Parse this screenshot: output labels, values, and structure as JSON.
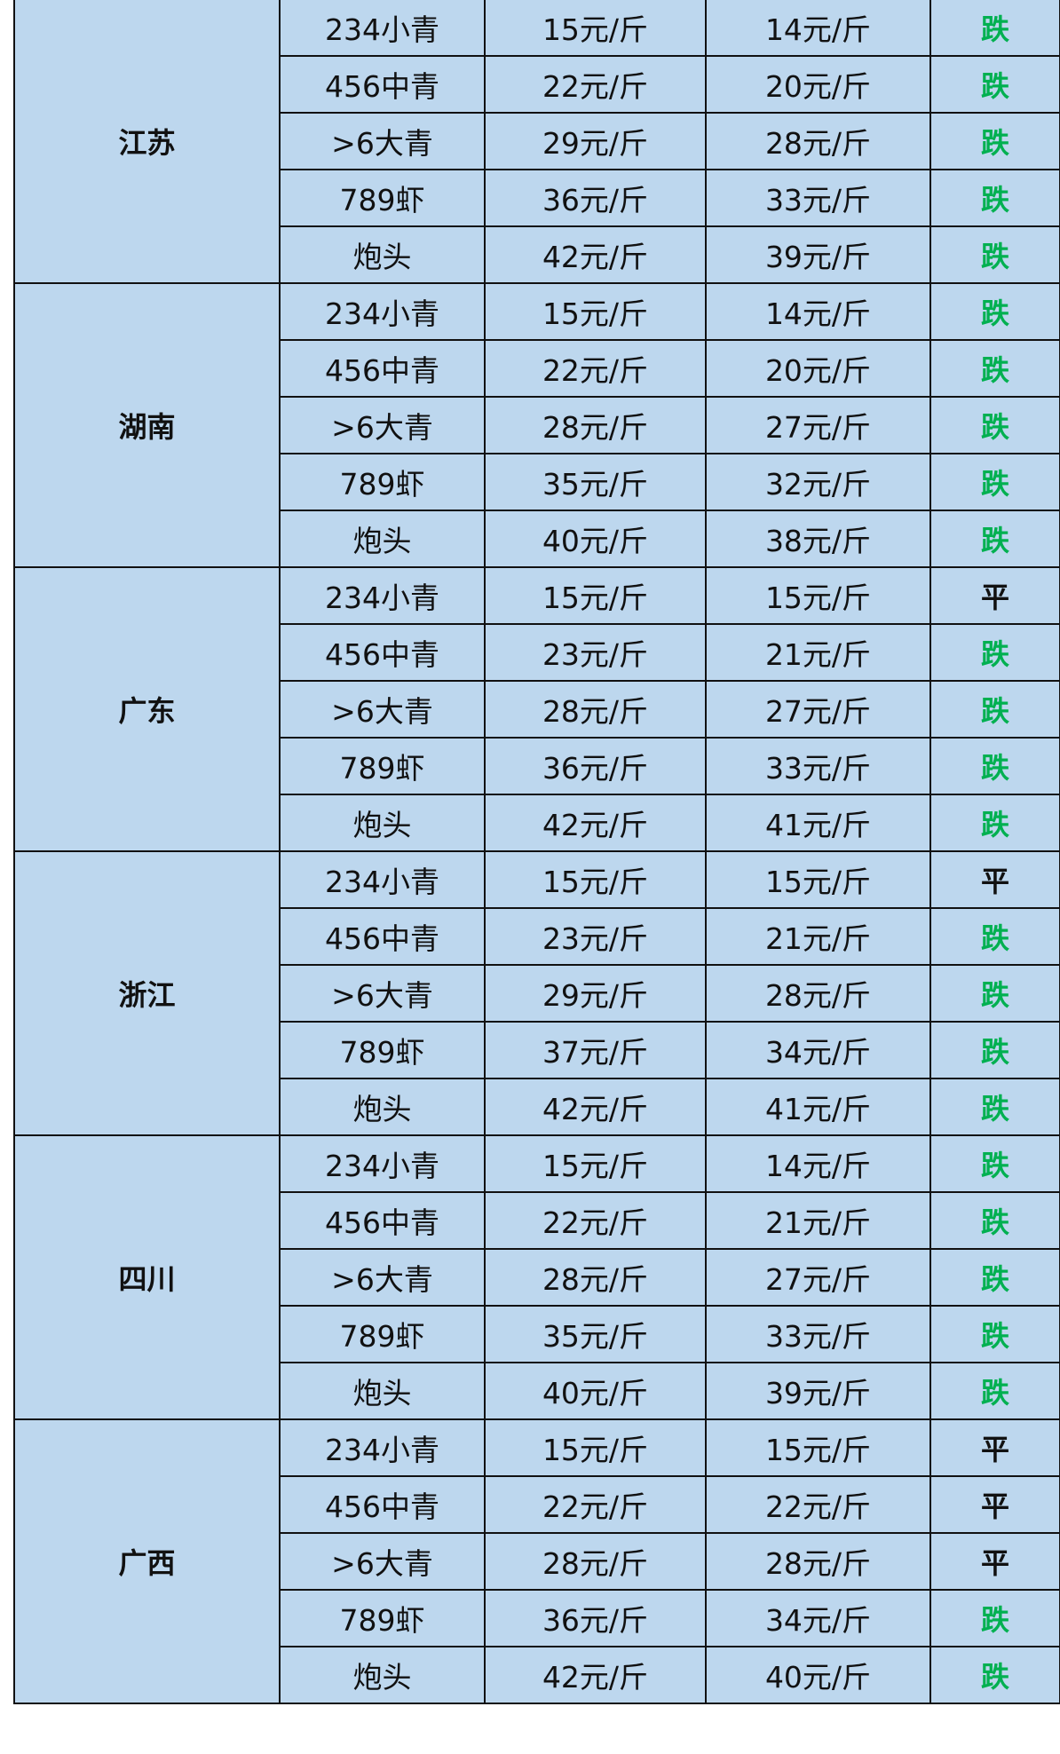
{
  "colors": {
    "background": "#bdd7ee",
    "fall": "#00b050",
    "flat": "#111111"
  },
  "regions": [
    {
      "name": "江苏",
      "rows": [
        [
          "234小青",
          "15元/斤",
          "14元/斤",
          "跌"
        ],
        [
          "456中青",
          "22元/斤",
          "20元/斤",
          "跌"
        ],
        [
          ">6大青",
          "29元/斤",
          "28元/斤",
          "跌"
        ],
        [
          "789虾",
          "36元/斤",
          "33元/斤",
          "跌"
        ],
        [
          "炮头",
          "42元/斤",
          "39元/斤",
          "跌"
        ]
      ]
    },
    {
      "name": "湖南",
      "rows": [
        [
          "234小青",
          "15元/斤",
          "14元/斤",
          "跌"
        ],
        [
          "456中青",
          "22元/斤",
          "20元/斤",
          "跌"
        ],
        [
          ">6大青",
          "28元/斤",
          "27元/斤",
          "跌"
        ],
        [
          "789虾",
          "35元/斤",
          "32元/斤",
          "跌"
        ],
        [
          "炮头",
          "40元/斤",
          "38元/斤",
          "跌"
        ]
      ]
    },
    {
      "name": "广东",
      "rows": [
        [
          "234小青",
          "15元/斤",
          "15元/斤",
          "平"
        ],
        [
          "456中青",
          "23元/斤",
          "21元/斤",
          "跌"
        ],
        [
          ">6大青",
          "28元/斤",
          "27元/斤",
          "跌"
        ],
        [
          "789虾",
          "36元/斤",
          "33元/斤",
          "跌"
        ],
        [
          "炮头",
          "42元/斤",
          "41元/斤",
          "跌"
        ]
      ]
    },
    {
      "name": "浙江",
      "rows": [
        [
          "234小青",
          "15元/斤",
          "15元/斤",
          "平"
        ],
        [
          "456中青",
          "23元/斤",
          "21元/斤",
          "跌"
        ],
        [
          ">6大青",
          "29元/斤",
          "28元/斤",
          "跌"
        ],
        [
          "789虾",
          "37元/斤",
          "34元/斤",
          "跌"
        ],
        [
          "炮头",
          "42元/斤",
          "41元/斤",
          "跌"
        ]
      ]
    },
    {
      "name": "四川",
      "rows": [
        [
          "234小青",
          "15元/斤",
          "14元/斤",
          "跌"
        ],
        [
          "456中青",
          "22元/斤",
          "21元/斤",
          "跌"
        ],
        [
          ">6大青",
          "28元/斤",
          "27元/斤",
          "跌"
        ],
        [
          "789虾",
          "35元/斤",
          "33元/斤",
          "跌"
        ],
        [
          "炮头",
          "40元/斤",
          "39元/斤",
          "跌"
        ]
      ]
    },
    {
      "name": "广西",
      "rows": [
        [
          "234小青",
          "15元/斤",
          "15元/斤",
          "平"
        ],
        [
          "456中青",
          "22元/斤",
          "22元/斤",
          "平"
        ],
        [
          ">6大青",
          "28元/斤",
          "28元/斤",
          "平"
        ],
        [
          "789虾",
          "36元/斤",
          "34元/斤",
          "跌"
        ],
        [
          "炮头",
          "42元/斤",
          "40元/斤",
          "跌"
        ]
      ]
    }
  ]
}
